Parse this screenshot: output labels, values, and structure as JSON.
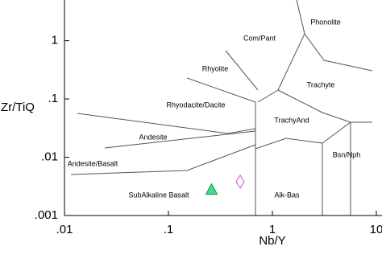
{
  "chart_data": {
    "type": "scatter",
    "xlabel": "Nb/Y",
    "ylabel": "Zr/TiQ",
    "xscale": "log",
    "yscale": "log",
    "xlim": [
      0.01,
      10
    ],
    "ylim": [
      0.001,
      5
    ],
    "xticks": [
      {
        "value": 0.01,
        "label": ".01"
      },
      {
        "value": 0.1,
        "label": ".1"
      },
      1,
      10
    ],
    "yticks": [
      {
        "value": 0.001,
        "label": ".001"
      },
      {
        "value": 0.01,
        "label": ".01"
      },
      {
        "value": 0.1,
        "label": ".1"
      },
      1
    ],
    "series": [
      {
        "color": "#3ee08c",
        "marker": "triangle",
        "filled": true,
        "x": [
          0.26
        ],
        "values": [
          0.0028
        ]
      },
      {
        "color": "#e040e0",
        "marker": "diamond",
        "filled": false,
        "x": [
          0.49
        ],
        "values": [
          0.0038
        ]
      }
    ],
    "annotations": [
      "Phonolite",
      "Com/Pant",
      "Rhyolite",
      "Trachyte",
      "Rhyodacite/Dacite",
      "TrachyAnd",
      "Andesite",
      "Andesite/Basalt",
      "Bsn/Nph",
      "SubAlkaline Basalt",
      "Alk-Bas"
    ]
  }
}
